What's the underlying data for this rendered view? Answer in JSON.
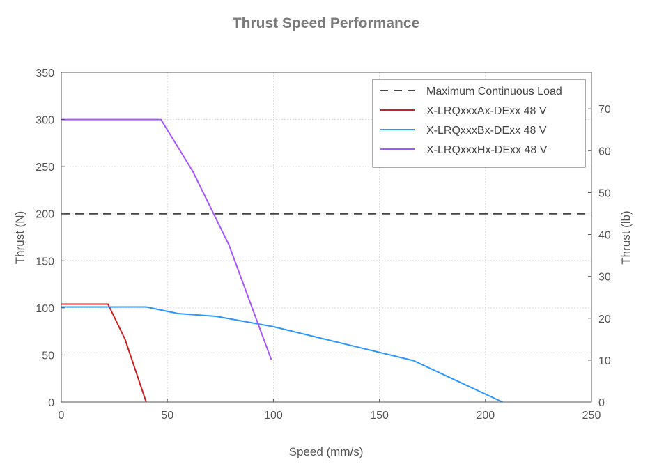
{
  "chart_data": {
    "type": "line",
    "title": "Thrust Speed Performance",
    "xlabel": "Speed (mm/s)",
    "ylabel": "Thrust (N)",
    "y2label": "Thrust (lb)",
    "xlim": [
      0,
      250
    ],
    "ylim": [
      0,
      350
    ],
    "y2lim": [
      0,
      78.68
    ],
    "x_ticks": [
      0,
      50,
      100,
      150,
      200,
      250
    ],
    "y_ticks": [
      0,
      50,
      100,
      150,
      200,
      250,
      300,
      350
    ],
    "y2_ticks": [
      0,
      10,
      20,
      30,
      40,
      50,
      60,
      70
    ],
    "grid": true,
    "legend_position": "top-right",
    "series": [
      {
        "name": "Maximum Continuous Load",
        "color": "#444444",
        "dash": true,
        "x": [
          0,
          250
        ],
        "y": [
          200,
          200
        ]
      },
      {
        "name": "X-LRQxxxAx-DExx 48 V",
        "color": "#cc1f1f",
        "dash": false,
        "x": [
          0,
          22,
          30,
          40
        ],
        "y": [
          104,
          104,
          67,
          0
        ]
      },
      {
        "name": "X-LRQxxxBx-DExx 48 V",
        "color": "#2a96ff",
        "dash": false,
        "x": [
          0,
          40,
          55,
          73,
          100,
          166,
          208
        ],
        "y": [
          101,
          101,
          94,
          91,
          80,
          44,
          0
        ]
      },
      {
        "name": "X-LRQxxxHx-DExx 48 V",
        "color": "#a655ff",
        "dash": false,
        "x": [
          0,
          47,
          62,
          79,
          99
        ],
        "y": [
          300,
          300,
          245,
          167,
          45
        ]
      }
    ]
  }
}
